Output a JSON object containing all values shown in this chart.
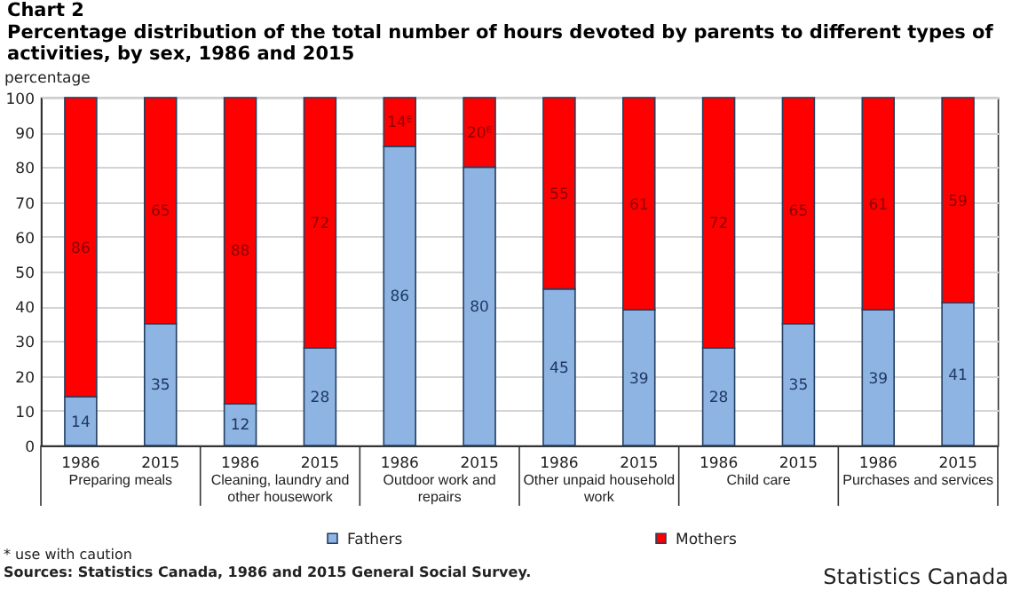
{
  "chart_data": {
    "type": "bar",
    "title": "Chart 2",
    "subtitle": "Percentage distribution of the total number of hours devoted by parents to different types of activities, by sex, 1986 and 2015",
    "ylabel": "percentage",
    "categories": [
      "1986",
      "2015",
      "1986",
      "2015",
      "1986",
      "2015",
      "1986",
      "2015",
      "1986",
      "2015",
      "1986",
      "2015"
    ],
    "series": [
      {
        "name": "Fathers",
        "color": "#8db4e2",
        "values": [
          14,
          35,
          12,
          28,
          86,
          80,
          45,
          39,
          28,
          35,
          39,
          41
        ],
        "value_labels": [
          "14",
          "35",
          "12",
          "28",
          "86",
          "80",
          "45",
          "39",
          "28",
          "35",
          "39",
          "41"
        ]
      },
      {
        "name": "Mothers",
        "color": "#ff0000",
        "values": [
          86,
          65,
          88,
          72,
          14,
          20,
          55,
          61,
          72,
          65,
          61,
          59
        ],
        "value_labels": [
          "86",
          "65",
          "88",
          "72",
          "14ᴱ",
          "20ᴱ",
          "55",
          "61",
          "72",
          "65",
          "61",
          "59"
        ]
      }
    ],
    "stacked": true,
    "ylim": [
      0,
      100
    ],
    "yticks": [
      0,
      10,
      20,
      30,
      40,
      50,
      60,
      70,
      80,
      90,
      100
    ],
    "grid": "y",
    "legend": "bottom",
    "annotations": [
      "Preparing meals",
      "Cleaning, laundry and other housework",
      "Outdoor work and repairs",
      "Other unpaid household work",
      "Child care",
      "Purchases and services",
      "* use with caution",
      "Sources: Statistics Canada, 1986 and 2015 General Social Survey.",
      "Statistics Canada"
    ]
  }
}
